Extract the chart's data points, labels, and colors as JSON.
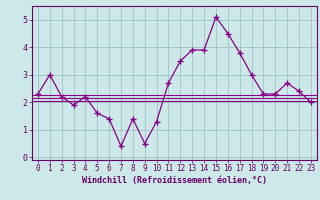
{
  "x": [
    0,
    1,
    2,
    3,
    4,
    5,
    6,
    7,
    8,
    9,
    10,
    11,
    12,
    13,
    14,
    15,
    16,
    17,
    18,
    19,
    20,
    21,
    22,
    23
  ],
  "y": [
    2.3,
    3.0,
    2.2,
    1.9,
    2.2,
    1.6,
    1.4,
    0.4,
    1.4,
    0.5,
    1.3,
    2.7,
    3.5,
    3.9,
    3.9,
    5.1,
    4.5,
    3.8,
    3.0,
    2.3,
    2.3,
    2.7,
    2.4,
    2.0
  ],
  "hline1": 2.05,
  "hline2": 2.15,
  "hline3": 2.25,
  "line_color": "#880088",
  "bg_color": "#cce8e8",
  "grid_color": "#99bbbb",
  "axis_color": "#660066",
  "xlabel": "Windchill (Refroidissement éolien,°C)",
  "xlim": [
    -0.5,
    23.5
  ],
  "ylim": [
    -0.1,
    5.5
  ],
  "yticks": [
    0,
    1,
    2,
    3,
    4,
    5
  ],
  "xticks": [
    0,
    1,
    2,
    3,
    4,
    5,
    6,
    7,
    8,
    9,
    10,
    11,
    12,
    13,
    14,
    15,
    16,
    17,
    18,
    19,
    20,
    21,
    22,
    23
  ],
  "marker": "+",
  "markersize": 5,
  "markeredgewidth": 1.0,
  "linewidth": 0.9,
  "tick_fontsize": 5.5,
  "xlabel_fontsize": 6.0
}
